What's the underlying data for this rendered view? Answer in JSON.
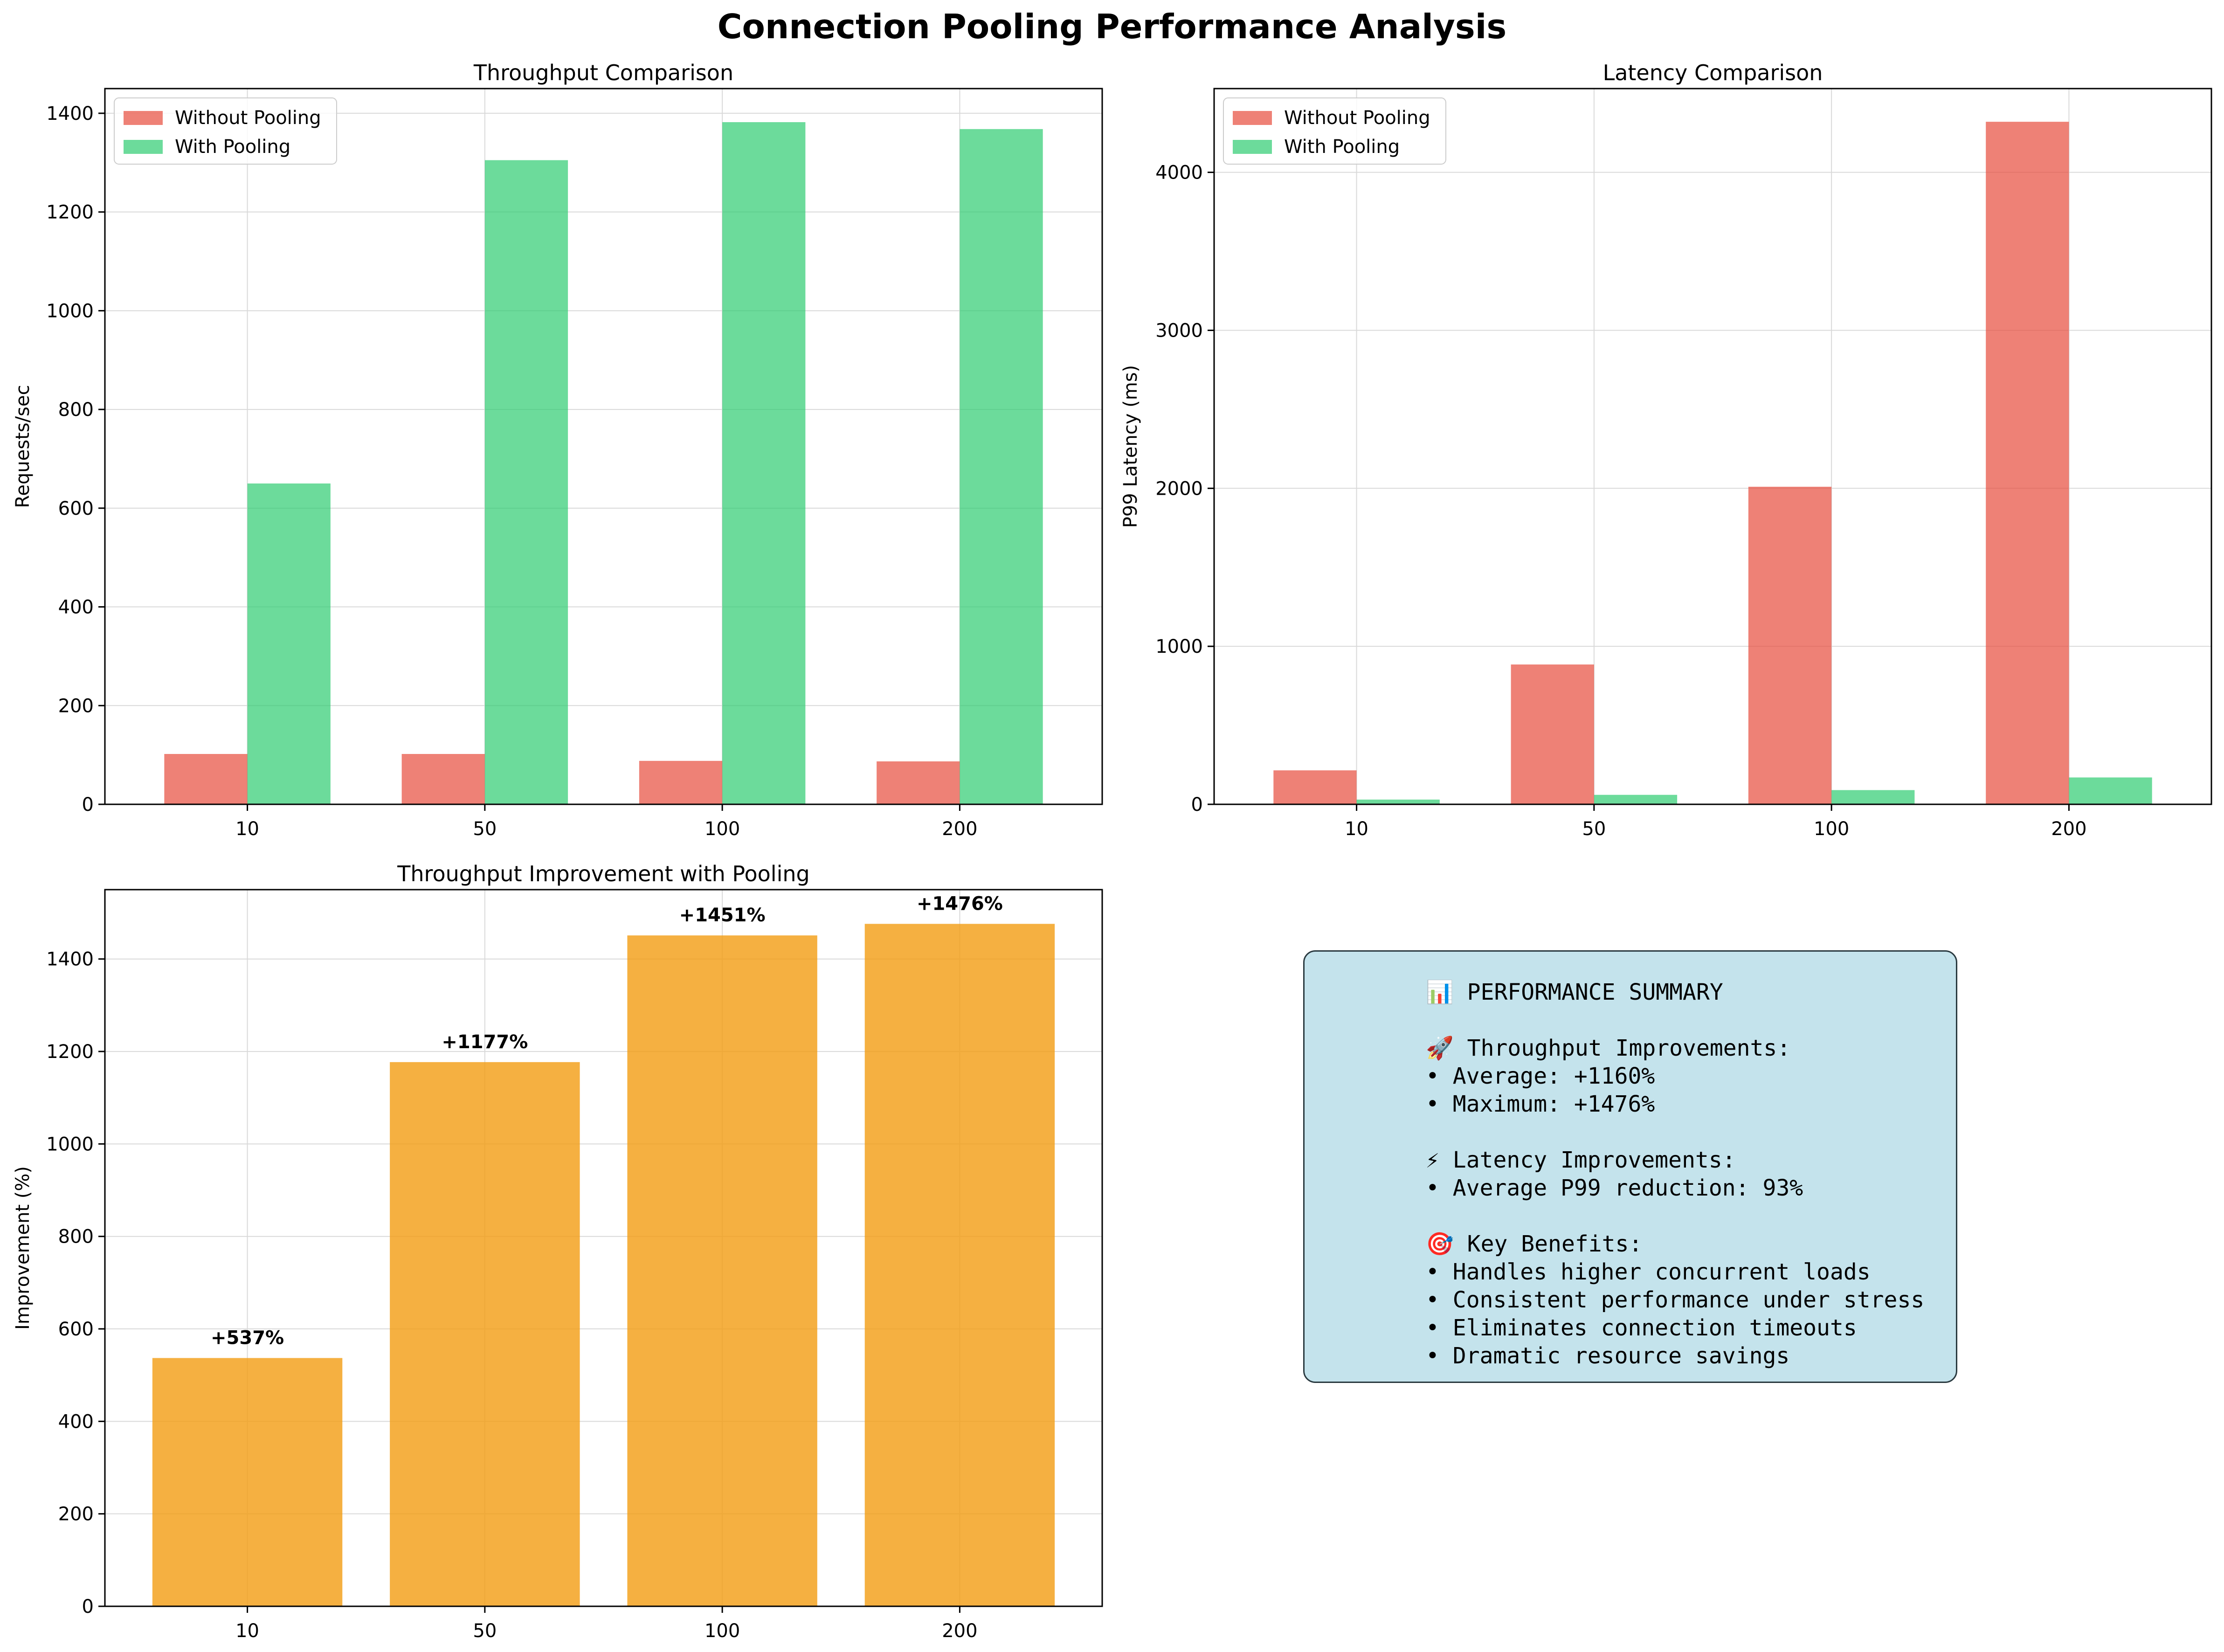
{
  "figure_title": "Connection Pooling Performance Analysis",
  "colors": {
    "without_pooling": "#e74c3c",
    "with_pooling": "#2ecc71",
    "improvement": "#f39c12",
    "summary_bg": "#add8e6"
  },
  "chart_data": [
    {
      "type": "bar",
      "title": "Throughput Comparison",
      "xlabel": "",
      "ylabel": "Requests/sec",
      "categories": [
        "10",
        "50",
        "100",
        "200"
      ],
      "series": [
        {
          "name": "Without Pooling",
          "values": [
            102,
            102,
            88,
            87
          ]
        },
        {
          "name": "With Pooling",
          "values": [
            650,
            1305,
            1382,
            1368
          ]
        }
      ],
      "ylim": [
        0,
        1450
      ],
      "yticks": [
        0,
        200,
        400,
        600,
        800,
        1000,
        1200,
        1400
      ],
      "grid": true,
      "legend": "top-left"
    },
    {
      "type": "bar",
      "title": "Latency Comparison",
      "xlabel": "",
      "ylabel": "P99 Latency (ms)",
      "categories": [
        "10",
        "50",
        "100",
        "200"
      ],
      "series": [
        {
          "name": "Without Pooling",
          "values": [
            215,
            885,
            2010,
            4320
          ]
        },
        {
          "name": "With Pooling",
          "values": [
            30,
            60,
            90,
            170
          ]
        }
      ],
      "ylim": [
        0,
        4530
      ],
      "yticks": [
        0,
        1000,
        2000,
        3000,
        4000
      ],
      "grid": true,
      "legend": "top-left"
    },
    {
      "type": "bar",
      "title": "Throughput Improvement with Pooling",
      "xlabel": "",
      "ylabel": "Improvement (%)",
      "categories": [
        "10",
        "50",
        "100",
        "200"
      ],
      "values": [
        537,
        1177,
        1451,
        1476
      ],
      "data_labels": [
        "+537%",
        "+1177%",
        "+1451%",
        "+1476%"
      ],
      "ylim": [
        0,
        1550
      ],
      "yticks": [
        0,
        200,
        400,
        600,
        800,
        1000,
        1200,
        1400
      ],
      "grid": true
    }
  ],
  "summary": {
    "lines": [
      "📊 PERFORMANCE SUMMARY",
      "",
      "🚀 Throughput Improvements:",
      "• Average: +1160%",
      "• Maximum: +1476%",
      "",
      "⚡ Latency Improvements:",
      "• Average P99 reduction: 93%",
      "",
      "🎯 Key Benefits:",
      "• Handles higher concurrent loads",
      "• Consistent performance under stress",
      "• Eliminates connection timeouts",
      "• Dramatic resource savings"
    ]
  }
}
